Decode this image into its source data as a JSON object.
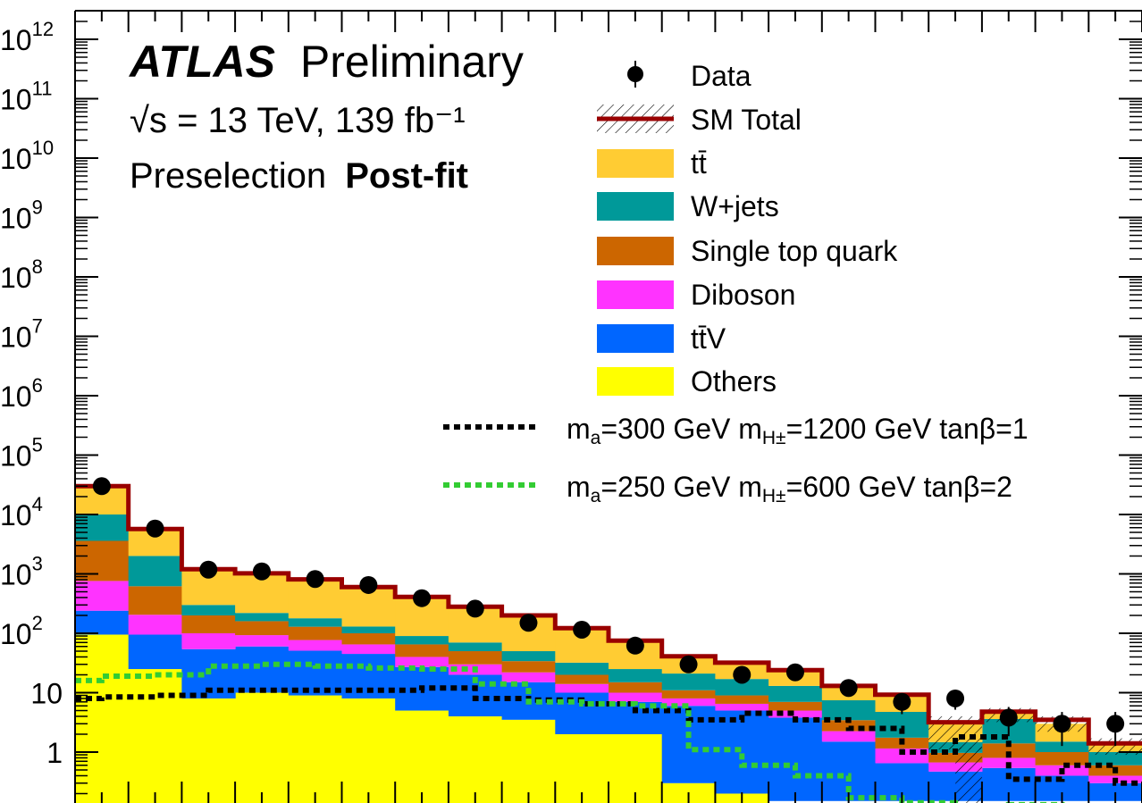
{
  "header": {
    "experiment": "ATLAS",
    "status": "Preliminary",
    "energy_line": "√s = 13 TeV, 139 fb⁻¹",
    "region": "Preselection",
    "fit_state": "Post-fit"
  },
  "legend": {
    "items": [
      {
        "key": "data",
        "label": "Data",
        "style": "marker",
        "color": "#000000"
      },
      {
        "key": "sm_total",
        "label": "SM Total",
        "style": "line-hatch",
        "color": "#990000"
      },
      {
        "key": "ttbar",
        "label": "tt̄",
        "style": "fill",
        "color": "#FFCC33"
      },
      {
        "key": "wjets",
        "label": "W+jets",
        "style": "fill",
        "color": "#009999"
      },
      {
        "key": "singletop",
        "label": "Single top quark",
        "style": "fill",
        "color": "#CC6600"
      },
      {
        "key": "diboson",
        "label": "Diboson",
        "style": "fill",
        "color": "#FF33FF"
      },
      {
        "key": "ttv",
        "label": "tt̄V",
        "style": "fill",
        "color": "#0066FF"
      },
      {
        "key": "others",
        "label": "Others",
        "style": "fill",
        "color": "#FFFF00"
      },
      {
        "key": "sig1",
        "label": "m_a=300 GeV m_H±=1200 GeV tanβ=1",
        "style": "dashed",
        "color": "#000000"
      },
      {
        "key": "sig2",
        "label": "m_a=250 GeV m_H±=600 GeV tanβ=2",
        "style": "dashed",
        "color": "#33CC33"
      }
    ]
  },
  "chart_data": {
    "type": "bar",
    "stacked": true,
    "yscale": "log",
    "ylim": [
      0.15,
      1000000000000.0
    ],
    "y_ticks": [
      {
        "value": 1,
        "label": "1"
      },
      {
        "value": 10,
        "label": "10"
      },
      {
        "value": 100,
        "label": "10",
        "exp": "2"
      },
      {
        "value": 1000,
        "label": "10",
        "exp": "3"
      },
      {
        "value": 10000,
        "label": "10",
        "exp": "4"
      },
      {
        "value": 100000,
        "label": "10",
        "exp": "5"
      },
      {
        "value": 1000000,
        "label": "10",
        "exp": "6"
      },
      {
        "value": 10000000,
        "label": "10",
        "exp": "7"
      },
      {
        "value": 100000000,
        "label": "10",
        "exp": "8"
      },
      {
        "value": 1000000000,
        "label": "10",
        "exp": "9"
      },
      {
        "value": 10000000000,
        "label": "10",
        "exp": "10"
      },
      {
        "value": 100000000000,
        "label": "10",
        "exp": "11"
      },
      {
        "value": 1000000000000,
        "label": "10",
        "exp": "12"
      }
    ],
    "n_bins": 20,
    "stack_order": [
      "others",
      "ttv",
      "diboson",
      "singletop",
      "wjets",
      "ttbar"
    ],
    "series": [
      {
        "name": "Others",
        "key": "others",
        "color": "#FFFF00",
        "values": [
          95,
          25,
          8,
          10,
          9,
          8,
          5,
          4,
          3.5,
          2,
          2,
          0.3,
          0.2,
          0.1,
          0.1,
          0.1,
          0.1,
          0.1,
          0.1,
          0.1
        ]
      },
      {
        "name": "tt̄V",
        "key": "ttv",
        "color": "#0066FF",
        "values": [
          145,
          70,
          46,
          50,
          42,
          37,
          22,
          16,
          11.5,
          8,
          5,
          5.7,
          4.8,
          3.7,
          1.4,
          0.55,
          0.37,
          0.44,
          0.3,
          0.2
        ]
      },
      {
        "name": "Diboson",
        "key": "diboson",
        "color": "#FF33FF",
        "values": [
          520,
          110,
          46,
          33,
          26,
          20,
          13,
          10,
          7,
          4,
          3,
          2,
          1.5,
          1.2,
          0.75,
          0.5,
          0.2,
          0.26,
          0.2,
          0.1
        ]
      },
      {
        "name": "Single top quark",
        "key": "singletop",
        "color": "#CC6600",
        "values": [
          2840,
          415,
          100,
          67,
          52,
          35,
          25,
          20,
          12,
          6,
          5,
          3,
          2.5,
          2,
          1.2,
          0.6,
          0.3,
          0.6,
          0.4,
          0.2
        ]
      },
      {
        "name": "W+jets",
        "key": "wjets",
        "color": "#009999",
        "values": [
          6400,
          1385,
          100,
          60,
          50,
          30,
          25,
          20,
          16,
          12,
          10,
          10,
          8,
          6,
          4,
          3,
          0.5,
          2.2,
          0.5,
          0.4
        ]
      },
      {
        "name": "tt̄",
        "key": "ttbar",
        "color": "#FFCC33",
        "values": [
          20000,
          3700,
          900,
          800,
          630,
          470,
          320,
          210,
          150,
          90,
          50,
          20,
          15,
          11,
          5.5,
          4.5,
          1.7,
          1.2,
          1.5,
          0.4
        ]
      }
    ],
    "sm_total": [
      30000,
      5700,
      1200,
      1020,
      810,
      600,
      410,
      280,
      200,
      122,
      75,
      41,
      32,
      24,
      13,
      9.25,
      3.17,
      4.8,
      3.5,
      1.4
    ],
    "data": [
      30000,
      5800,
      1180,
      1100,
      820,
      650,
      390,
      260,
      150,
      115,
      62,
      30,
      20,
      22,
      12,
      7,
      8,
      3.8,
      3,
      3
    ],
    "signal_1": {
      "name": "m_a=300 GeV m_H±=1200 GeV tanβ=1",
      "values": [
        8,
        8.5,
        9,
        11,
        11,
        11,
        11,
        12,
        8,
        7.5,
        6.5,
        5,
        3.5,
        4.5,
        3.5,
        2.5,
        1,
        1.8,
        0.35,
        0.6,
        0.3
      ]
    },
    "signal_2": {
      "name": "m_a=250 GeV m_H±=600 GeV tanβ=2",
      "values": [
        16,
        19,
        20,
        28,
        30,
        28,
        26,
        25,
        14,
        7,
        6.5,
        6,
        1.1,
        0.6,
        0.4,
        0.17,
        0.14,
        0.12,
        0.13,
        0.12,
        0.12
      ]
    }
  }
}
